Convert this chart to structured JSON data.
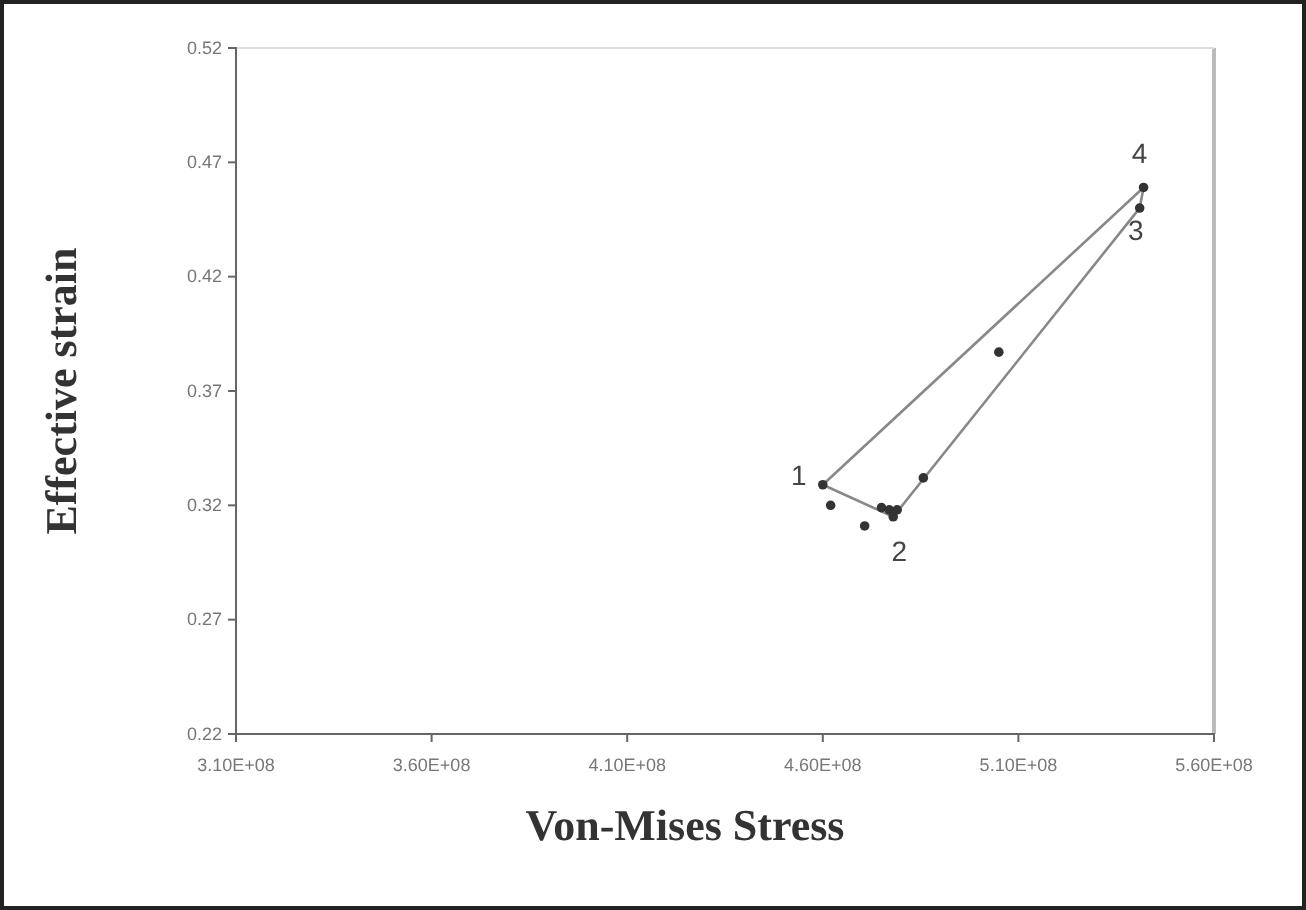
{
  "chart_data": {
    "type": "scatter",
    "xlabel": "Von-Mises Stress",
    "ylabel": "Effective strain",
    "xlim": [
      310000000,
      560000000
    ],
    "xticks": [
      {
        "value": 310000000,
        "label": "3.10E+08"
      },
      {
        "value": 360000000,
        "label": "3.60E+08"
      },
      {
        "value": 410000000,
        "label": "4.10E+08"
      },
      {
        "value": 460000000,
        "label": "4.60E+08"
      },
      {
        "value": 510000000,
        "label": "5.10E+08"
      },
      {
        "value": 560000000,
        "label": "5.60E+08"
      }
    ],
    "ylim": [
      0.22,
      0.52
    ],
    "yticks": [
      0.22,
      0.27,
      0.32,
      0.37,
      0.42,
      0.47,
      0.52
    ],
    "grid": false,
    "series": [
      {
        "type": "line",
        "color": "#888888",
        "marker": "none",
        "x": [
          460000000,
          478000000,
          541000000,
          542000000
        ],
        "values": [
          0.329,
          0.315,
          0.45,
          0.459
        ]
      },
      {
        "type": "line",
        "color": "#888888",
        "marker": "none",
        "x": [
          460000000,
          542000000
        ],
        "values": [
          0.329,
          0.459
        ]
      },
      {
        "color": "#333333",
        "marker": "circle",
        "x": [
          460000000,
          462000000,
          470700000,
          475000000,
          477000000,
          478000000,
          479000000,
          485700000,
          505000000,
          541000000,
          542000000
        ],
        "values": [
          0.329,
          0.32,
          0.311,
          0.319,
          0.318,
          0.315,
          0.318,
          0.332,
          0.387,
          0.45,
          0.459
        ]
      }
    ],
    "annotations": [
      {
        "text": "1",
        "x": 460000000,
        "y": 0.329
      },
      {
        "text": "2",
        "x": 478000000,
        "y": 0.315
      },
      {
        "text": "3",
        "x": 541000000,
        "y": 0.45
      },
      {
        "text": "4",
        "x": 542000000,
        "y": 0.459
      }
    ]
  }
}
